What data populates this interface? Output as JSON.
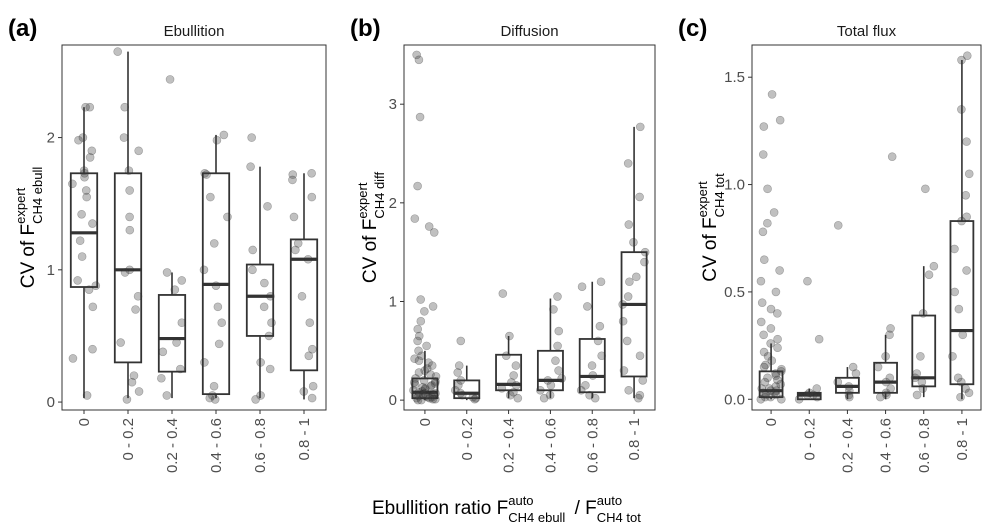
{
  "figure": {
    "x_label_main": "Ebullition ratio F",
    "x_label_num_sup": "auto",
    "x_label_num_sub": "CH4 ebull",
    "x_label_sep": " / F",
    "x_label_den_sup": "auto",
    "x_label_den_sub": "CH4 tot"
  },
  "chart_data": [
    {
      "type": "box",
      "panel_label": "(a)",
      "title": "Ebullition",
      "ylabel_main": "CV of F",
      "ylabel_sup": "expert",
      "ylabel_sub": "CH4 ebull",
      "categories": [
        "0",
        "0 - 0.2",
        "0.2 - 0.4",
        "0.4 - 0.6",
        "0.6 - 0.8",
        "0.8 - 1"
      ],
      "ylim": [
        -0.06,
        2.7
      ],
      "yticks": [
        0,
        1,
        2
      ],
      "boxes": [
        {
          "q1": 0.87,
          "median": 1.28,
          "q3": 1.73,
          "lo": 0.03,
          "hi": 2.23
        },
        {
          "q1": 0.3,
          "median": 1.0,
          "q3": 1.73,
          "lo": 0.03,
          "hi": 2.65
        },
        {
          "q1": 0.23,
          "median": 0.48,
          "q3": 0.81,
          "lo": 0.03,
          "hi": 0.98
        },
        {
          "q1": 0.06,
          "median": 0.89,
          "q3": 1.73,
          "lo": 0.03,
          "hi": 2.02
        },
        {
          "q1": 0.5,
          "median": 0.8,
          "q3": 1.04,
          "lo": 0.03,
          "hi": 1.78
        },
        {
          "q1": 0.24,
          "median": 1.08,
          "q3": 1.23,
          "lo": 0.02,
          "hi": 1.73
        }
      ],
      "points": [
        [
          2.23,
          2.23,
          2.0,
          1.98,
          1.9,
          1.85,
          1.75,
          1.73,
          1.7,
          1.65,
          1.6,
          1.55,
          1.42,
          1.35,
          1.22,
          1.1,
          0.92,
          0.88,
          0.85,
          0.72,
          0.4,
          0.33,
          0.05
        ],
        [
          2.65,
          2.23,
          2.0,
          1.9,
          1.75,
          1.6,
          1.4,
          1.3,
          1.0,
          0.98,
          0.8,
          0.7,
          0.45,
          0.2,
          0.15,
          0.08,
          0.02
        ],
        [
          2.44,
          0.98,
          0.92,
          0.85,
          0.6,
          0.45,
          0.38,
          0.25,
          0.18,
          0.05
        ],
        [
          2.02,
          1.98,
          1.73,
          1.72,
          1.55,
          1.4,
          1.2,
          1.0,
          0.88,
          0.72,
          0.6,
          0.44,
          0.3,
          0.12,
          0.05,
          0.03,
          0.02
        ],
        [
          2.0,
          1.78,
          1.48,
          1.15,
          1.0,
          0.9,
          0.8,
          0.72,
          0.6,
          0.5,
          0.3,
          0.25,
          0.05,
          0.02
        ],
        [
          1.73,
          1.72,
          1.68,
          1.55,
          1.4,
          1.2,
          1.15,
          1.08,
          0.8,
          0.6,
          0.4,
          0.35,
          0.12,
          0.08,
          0.03
        ]
      ]
    },
    {
      "type": "box",
      "panel_label": "(b)",
      "title": "Diffusion",
      "ylabel_main": "CV of F",
      "ylabel_sup": "expert",
      "ylabel_sub": "CH4 diff",
      "categories": [
        "0",
        "0 - 0.2",
        "0.2 - 0.4",
        "0.4 - 0.6",
        "0.6 - 0.8",
        "0.8 - 1"
      ],
      "ylim": [
        -0.1,
        3.6
      ],
      "yticks": [
        0,
        1,
        2,
        3
      ],
      "boxes": [
        {
          "q1": 0.02,
          "median": 0.08,
          "q3": 0.22,
          "lo": 0.0,
          "hi": 0.5
        },
        {
          "q1": 0.02,
          "median": 0.07,
          "q3": 0.2,
          "lo": 0.0,
          "hi": 0.35
        },
        {
          "q1": 0.1,
          "median": 0.16,
          "q3": 0.46,
          "lo": 0.02,
          "hi": 0.65
        },
        {
          "q1": 0.1,
          "median": 0.2,
          "q3": 0.5,
          "lo": 0.02,
          "hi": 1.03
        },
        {
          "q1": 0.08,
          "median": 0.24,
          "q3": 0.62,
          "lo": 0.02,
          "hi": 1.2
        },
        {
          "q1": 0.24,
          "median": 0.97,
          "q3": 1.5,
          "lo": 0.02,
          "hi": 2.77
        }
      ],
      "points": [
        [
          3.5,
          3.45,
          2.87,
          2.17,
          1.84,
          1.76,
          1.7,
          1.02,
          0.95,
          0.9,
          0.8,
          0.72,
          0.65,
          0.6,
          0.55,
          0.5,
          0.45,
          0.42,
          0.4,
          0.38,
          0.35,
          0.32,
          0.3,
          0.28,
          0.26,
          0.24,
          0.22,
          0.2,
          0.19,
          0.18,
          0.17,
          0.16,
          0.15,
          0.14,
          0.13,
          0.12,
          0.11,
          0.1,
          0.09,
          0.08,
          0.07,
          0.07,
          0.06,
          0.06,
          0.05,
          0.05,
          0.04,
          0.04,
          0.03,
          0.03,
          0.02,
          0.02,
          0.01,
          0.01,
          0.0,
          0.0
        ],
        [
          0.6,
          0.35,
          0.28,
          0.2,
          0.15,
          0.1,
          0.07,
          0.05,
          0.03,
          0.02,
          0.01
        ],
        [
          1.08,
          0.65,
          0.45,
          0.35,
          0.25,
          0.18,
          0.15,
          0.12,
          0.08,
          0.05,
          0.02
        ],
        [
          1.05,
          0.92,
          0.7,
          0.55,
          0.4,
          0.3,
          0.22,
          0.2,
          0.15,
          0.1,
          0.05,
          0.02
        ],
        [
          1.2,
          1.15,
          0.95,
          0.75,
          0.6,
          0.45,
          0.35,
          0.25,
          0.15,
          0.1,
          0.05,
          0.02
        ],
        [
          2.77,
          2.4,
          2.06,
          1.78,
          1.6,
          1.5,
          1.4,
          1.25,
          1.2,
          1.05,
          0.97,
          0.8,
          0.6,
          0.45,
          0.3,
          0.2,
          0.1,
          0.05,
          0.02
        ]
      ]
    },
    {
      "type": "box",
      "panel_label": "(c)",
      "title": "Total flux",
      "ylabel_main": "CV of F",
      "ylabel_sup": "expert",
      "ylabel_sub": "CH4 tot",
      "categories": [
        "0",
        "0 - 0.2",
        "0.2 - 0.4",
        "0.4 - 0.6",
        "0.6 - 0.8",
        "0.8 - 1"
      ],
      "ylim": [
        -0.05,
        1.65
      ],
      "yticks": [
        0.0,
        0.5,
        1.0,
        1.5
      ],
      "ytick_labels": [
        "0.0",
        "0.5",
        "1.0",
        "1.5"
      ],
      "boxes": [
        {
          "q1": 0.01,
          "median": 0.04,
          "q3": 0.13,
          "lo": 0.0,
          "hi": 0.26
        },
        {
          "q1": 0.0,
          "median": 0.02,
          "q3": 0.03,
          "lo": 0.0,
          "hi": 0.05
        },
        {
          "q1": 0.03,
          "median": 0.06,
          "q3": 0.1,
          "lo": 0.0,
          "hi": 0.15
        },
        {
          "q1": 0.03,
          "median": 0.08,
          "q3": 0.17,
          "lo": 0.0,
          "hi": 0.3
        },
        {
          "q1": 0.06,
          "median": 0.1,
          "q3": 0.39,
          "lo": 0.01,
          "hi": 0.62
        },
        {
          "q1": 0.07,
          "median": 0.32,
          "q3": 0.83,
          "lo": 0.0,
          "hi": 1.58
        }
      ],
      "points": [
        [
          1.42,
          1.3,
          1.27,
          1.14,
          0.98,
          0.87,
          0.82,
          0.78,
          0.65,
          0.6,
          0.55,
          0.5,
          0.45,
          0.42,
          0.4,
          0.36,
          0.33,
          0.3,
          0.28,
          0.26,
          0.24,
          0.22,
          0.2,
          0.18,
          0.16,
          0.15,
          0.14,
          0.13,
          0.12,
          0.11,
          0.1,
          0.09,
          0.08,
          0.07,
          0.06,
          0.05,
          0.05,
          0.04,
          0.04,
          0.03,
          0.03,
          0.02,
          0.02,
          0.01,
          0.01,
          0.0,
          0.0
        ],
        [
          0.55,
          0.28,
          0.05,
          0.03,
          0.02,
          0.02,
          0.01,
          0.0
        ],
        [
          0.81,
          0.15,
          0.12,
          0.08,
          0.06,
          0.04,
          0.02,
          0.01
        ],
        [
          1.13,
          0.33,
          0.3,
          0.2,
          0.15,
          0.1,
          0.08,
          0.05,
          0.03,
          0.02,
          0.01
        ],
        [
          0.98,
          0.62,
          0.58,
          0.4,
          0.2,
          0.12,
          0.1,
          0.08,
          0.05,
          0.02
        ],
        [
          1.6,
          1.58,
          1.35,
          1.2,
          1.05,
          0.95,
          0.85,
          0.83,
          0.7,
          0.6,
          0.5,
          0.42,
          0.3,
          0.2,
          0.1,
          0.08,
          0.05,
          0.03,
          0.01
        ]
      ]
    }
  ]
}
